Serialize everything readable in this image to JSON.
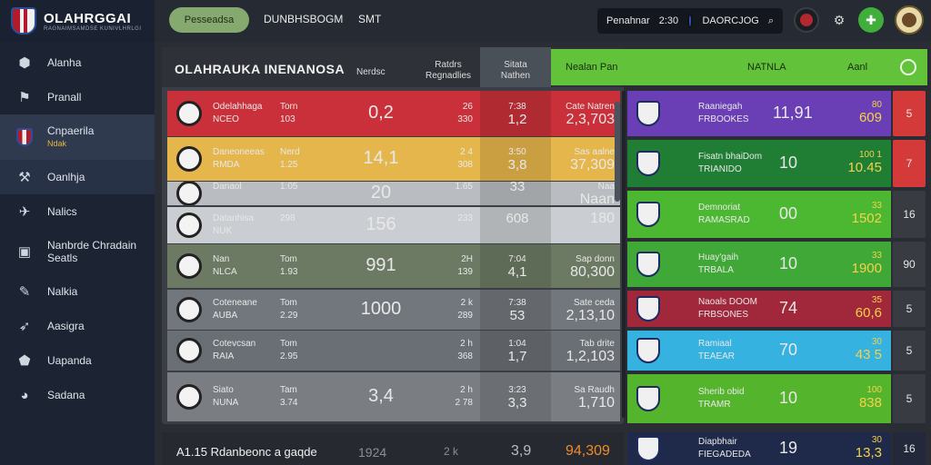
{
  "app": {
    "title": "OLAHRGGAI",
    "subtitle": "RAGNAIMSAMDSE KUNIVLHRLGI"
  },
  "sidebar": {
    "items": [
      {
        "label": "Alanha",
        "icon": "ball-icon"
      },
      {
        "label": "Pranall",
        "icon": "flag-icon"
      },
      {
        "label": "Cnpaerila",
        "sub": "Ndak",
        "icon": "club-crest-icon"
      },
      {
        "label": "Oanlhja",
        "icon": "chart-icon"
      },
      {
        "label": "Nalics",
        "icon": "plane-icon"
      },
      {
        "label": "Nanbrde Chradain",
        "label2": "Seatls",
        "icon": "screen-icon"
      },
      {
        "label": "Nalkia",
        "icon": "pencil-icon"
      },
      {
        "label": "Aasigra",
        "icon": "rocket-icon"
      },
      {
        "label": "Uapanda",
        "icon": "shield-icon"
      },
      {
        "label": "Sadana",
        "icon": "globe-icon"
      }
    ]
  },
  "topbar": {
    "tab_active": "Pesseadsa",
    "tab2": "DUNBHSBOGM",
    "tab3": "SMT",
    "search": {
      "label": "Penahnar",
      "value": "2:30",
      "right": "DAORCJOG"
    }
  },
  "main": {
    "title": "OLAHRAUKA INENANOSA",
    "col1": "Nerdsc",
    "col2a": "Ratdrs",
    "col2b": "Regnadlies",
    "col3a": "Sitata",
    "col3b": "Nathen",
    "rows": [
      {
        "name": "Odelahhaga",
        "name2": "NCEO",
        "c1": "Torn",
        "c1b": "103",
        "big": "0,2",
        "c3": "26",
        "c3b": "330",
        "c4a": "7:38",
        "c4b": "1,2",
        "c5a": "Cate Natren",
        "c5b": "2,3,703",
        "bg": "#c9303a"
      },
      {
        "name": "Daneoneeas",
        "name2": "RMDA",
        "c1": "Nerd",
        "c1b": "1.25",
        "big": "14,1",
        "c3": "2 4",
        "c3b": "308",
        "c4a": "3:50",
        "c4b": "3,8",
        "c5a": "Sas aalne",
        "c5b": "37,309",
        "bg": "#e5b64c"
      },
      {
        "name": "Danaol",
        "name2": "",
        "c1": "",
        "c1b": "1:05",
        "big": "20",
        "c3": "",
        "c3b": "1.65",
        "c4a": "",
        "c4b": "33",
        "c5a": "Naa",
        "c5b": "Naan",
        "bg": "#b9bcc0"
      },
      {
        "name": "Datanhisa",
        "name2": "NUK",
        "c1": "",
        "c1b": "298",
        "big": "156",
        "c3": "",
        "c3b": "233",
        "c4a": "",
        "c4b": "608",
        "c5a": "",
        "c5b": "180",
        "bg": "#cacdd1"
      },
      {
        "name": "Nan",
        "name2": "NLCA",
        "c1": "Tom",
        "c1b": "1.93",
        "big": "991",
        "c3": "2H",
        "c3b": "139",
        "c4a": "7:04",
        "c4b": "4,1",
        "c5a": "Sap donn",
        "c5b": "80,300",
        "bg": "#6c7a63"
      },
      {
        "name": "Coteneane",
        "name2": "AUBA",
        "c1": "Tom",
        "c1b": "2.29",
        "big": "1000",
        "c3": "2 k",
        "c3b": "289",
        "c4a": "7:38",
        "c4b": "53",
        "c5a": "Sate ceda",
        "c5b": "2,13,10",
        "bg": "#72777d"
      },
      {
        "name": "Cotevcsan",
        "name2": "RAIA",
        "c1": "Tom",
        "c1b": "2.95",
        "big": "",
        "c3": "2 h",
        "c3b": "368",
        "c4a": "1:04",
        "c4b": "1,7",
        "c5a": "Tab drite",
        "c5b": "1,2,103",
        "bg": "#6a6f75"
      },
      {
        "name": "Siato",
        "name2": "NUNA",
        "c1": "Tam",
        "c1b": "3.74",
        "big": "3,4",
        "c3": "2 h",
        "c3b": "2 78",
        "c4a": "3:23",
        "c4b": "3,3",
        "c5a": "Sa Raudh",
        "c5b": "1,710",
        "bg": "#7a7e83"
      }
    ]
  },
  "right": {
    "header": {
      "left": "Nealan Pan",
      "mid": "NATNLA",
      "right": "Aanl"
    },
    "rows": [
      {
        "name": "Raaniegah",
        "name2": "FRBOOKES",
        "mid": "11,91",
        "rt1": "80",
        "rt2": "609",
        "rank": "5",
        "bg": "#6a3fb5",
        "rankbg": "#d43a3a"
      },
      {
        "name": "Fisatn bhaiDom",
        "name2": "TRIANIDO",
        "mid": "10",
        "rt1": "100 1",
        "rt2": "10.45",
        "rank": "7",
        "bg": "#1f7e34",
        "rankbg": "#d43a3a"
      },
      {
        "name": "Demnoriat",
        "name2": "RAMASRAD",
        "mid": "00",
        "rt1": "33",
        "rt2": "1502",
        "rank": "16",
        "bg": "#4cb832",
        "rankbg": "#383c42"
      },
      {
        "name": "Huay'gaih",
        "name2": "TRBALA",
        "mid": "10",
        "rt1": "33",
        "rt2": "1900",
        "rank": "90",
        "bg": "#3fa836",
        "rankbg": "#383c42"
      },
      {
        "name": "Naoals DOOM",
        "name2": "FRBSONES",
        "mid": "74",
        "rt1": "35",
        "rt2": "60,6",
        "rank": "5",
        "bg": "#a0283a",
        "rankbg": "#383c42"
      },
      {
        "name": "Ramiaal",
        "name2": "TEAEAR",
        "mid": "70",
        "rt1": "30",
        "rt2": "43 5",
        "rank": "5",
        "bg": "#35b2e0",
        "rankbg": "#383c42"
      },
      {
        "name": "Sherib obid",
        "name2": "TRAMR",
        "mid": "10",
        "rt1": "100",
        "rt2": "838",
        "rank": "5",
        "bg": "#54b42c",
        "rankbg": "#383c42"
      },
      {
        "name": "Diapbhair",
        "name2": "FIEGADEDA",
        "mid": "19",
        "rt1": "30",
        "rt2": "13,3",
        "rank": "16",
        "bg": "#1f2a4a",
        "rankbg": "#23283a"
      }
    ]
  },
  "bottom": {
    "title": "A1.15 Rdanbeonc a gaqde",
    "c1": "1924",
    "c2": "2 k",
    "c3": "3,9",
    "c4": "94,309"
  }
}
